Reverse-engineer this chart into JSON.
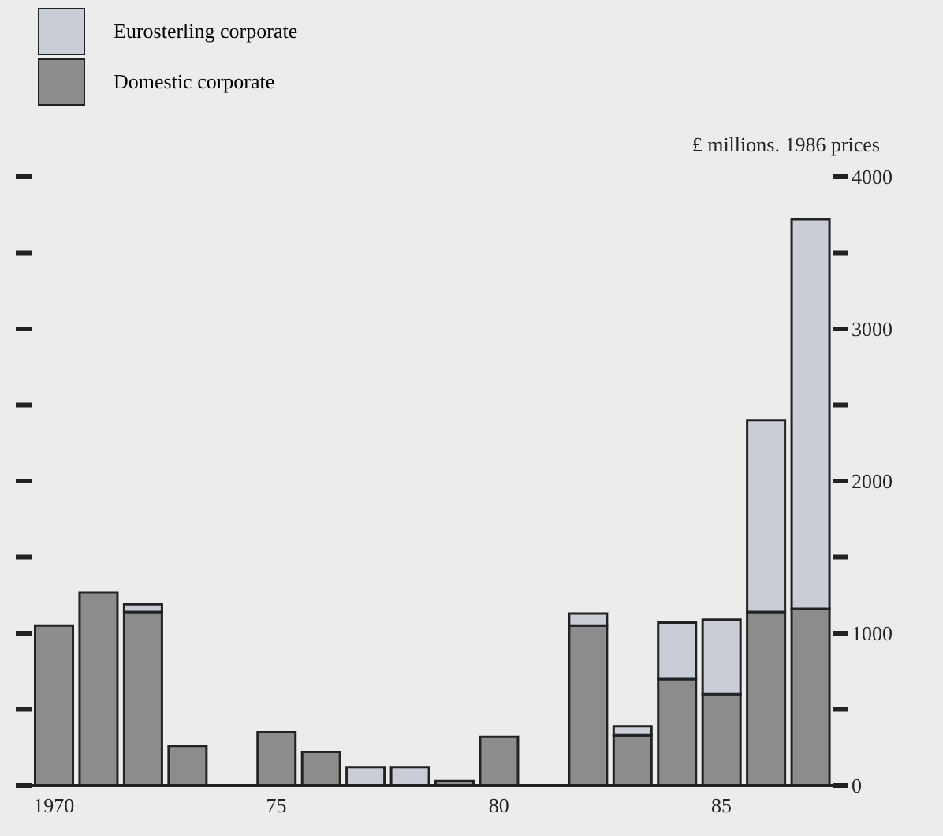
{
  "chart_data": {
    "type": "bar",
    "stacked": true,
    "ylabel": "£ millions. 1986 prices",
    "categories": [
      "1970",
      null,
      null,
      null,
      null,
      "75",
      null,
      null,
      null,
      null,
      "80",
      null,
      null,
      null,
      null,
      "85",
      null,
      null
    ],
    "series": [
      {
        "name": "Domestic corporate",
        "color": "#8c8c8c",
        "values": [
          1050,
          1270,
          1140,
          260,
          0,
          350,
          220,
          0,
          0,
          30,
          320,
          0,
          1050,
          330,
          700,
          600,
          1140,
          1160
        ]
      },
      {
        "name": "Eurosterling corporate",
        "color": "#c9cdd5",
        "values": [
          0,
          0,
          50,
          0,
          0,
          0,
          0,
          120,
          120,
          0,
          0,
          0,
          80,
          60,
          370,
          490,
          1260,
          2560
        ]
      }
    ],
    "ylim": [
      0,
      4000
    ],
    "yticks": [
      0,
      {
        "value": 500,
        "label": null
      },
      1000,
      {
        "value": 1500,
        "label": null
      },
      2000,
      {
        "value": 2500,
        "label": null
      },
      3000,
      {
        "value": 3500,
        "label": null
      },
      4000
    ],
    "legend": "top left",
    "grid": false
  }
}
